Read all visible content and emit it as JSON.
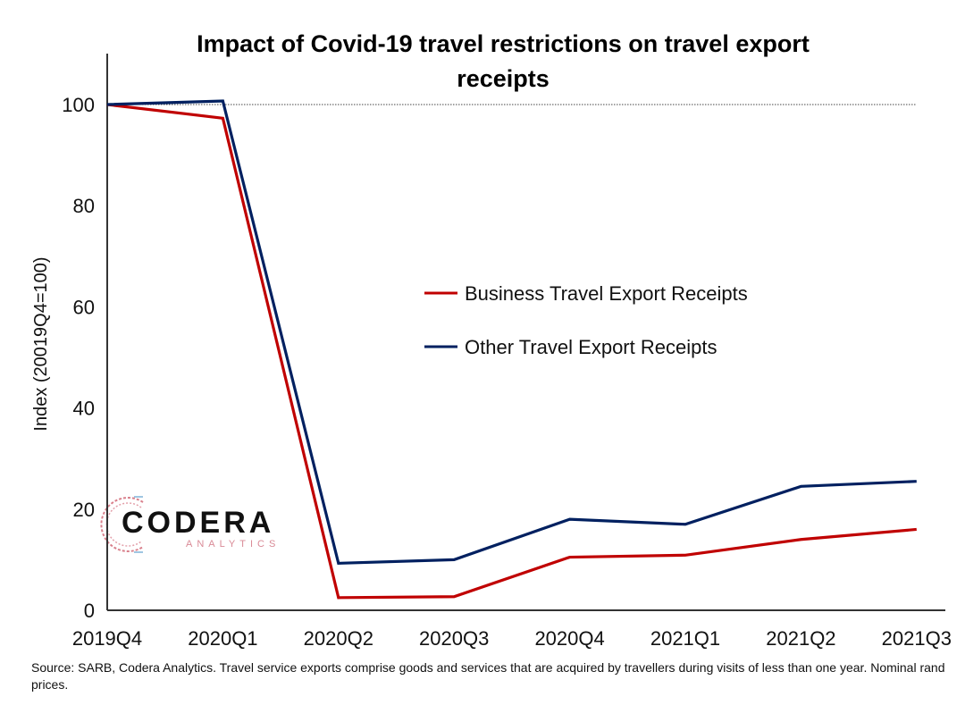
{
  "chart_data": {
    "type": "line",
    "title": "Impact of Covid-19 travel restrictions on travel export receipts",
    "title_lines": [
      "Impact of Covid-19 travel restrictions on travel export",
      "receipts"
    ],
    "xlabel": "",
    "ylabel": "Index (20019Q4=100)",
    "ylim": [
      0,
      110
    ],
    "yticks": [
      0,
      20,
      40,
      60,
      80,
      100
    ],
    "reference_line": 100,
    "grid": false,
    "legend_position": "center-right",
    "categories": [
      "2019Q4",
      "2020Q1",
      "2020Q2",
      "2020Q3",
      "2020Q4",
      "2021Q1",
      "2021Q2",
      "2021Q3"
    ],
    "series": [
      {
        "name": "Business Travel Export Receipts",
        "color": "#c00000",
        "values": [
          100,
          97.3,
          2.5,
          2.7,
          10.5,
          10.9,
          14.0,
          16.0
        ]
      },
      {
        "name": "Other Travel Export Receipts",
        "color": "#002060",
        "values": [
          100,
          100.7,
          9.3,
          10.0,
          18.0,
          17.0,
          24.5,
          25.5
        ]
      }
    ]
  },
  "logo": {
    "main": "CODERA",
    "sub": "ANALYTICS"
  },
  "source_note": "Source: SARB, Codera Analytics. Travel service exports comprise goods and services that are acquired by travellers during visits of less than one year. Nominal rand prices."
}
